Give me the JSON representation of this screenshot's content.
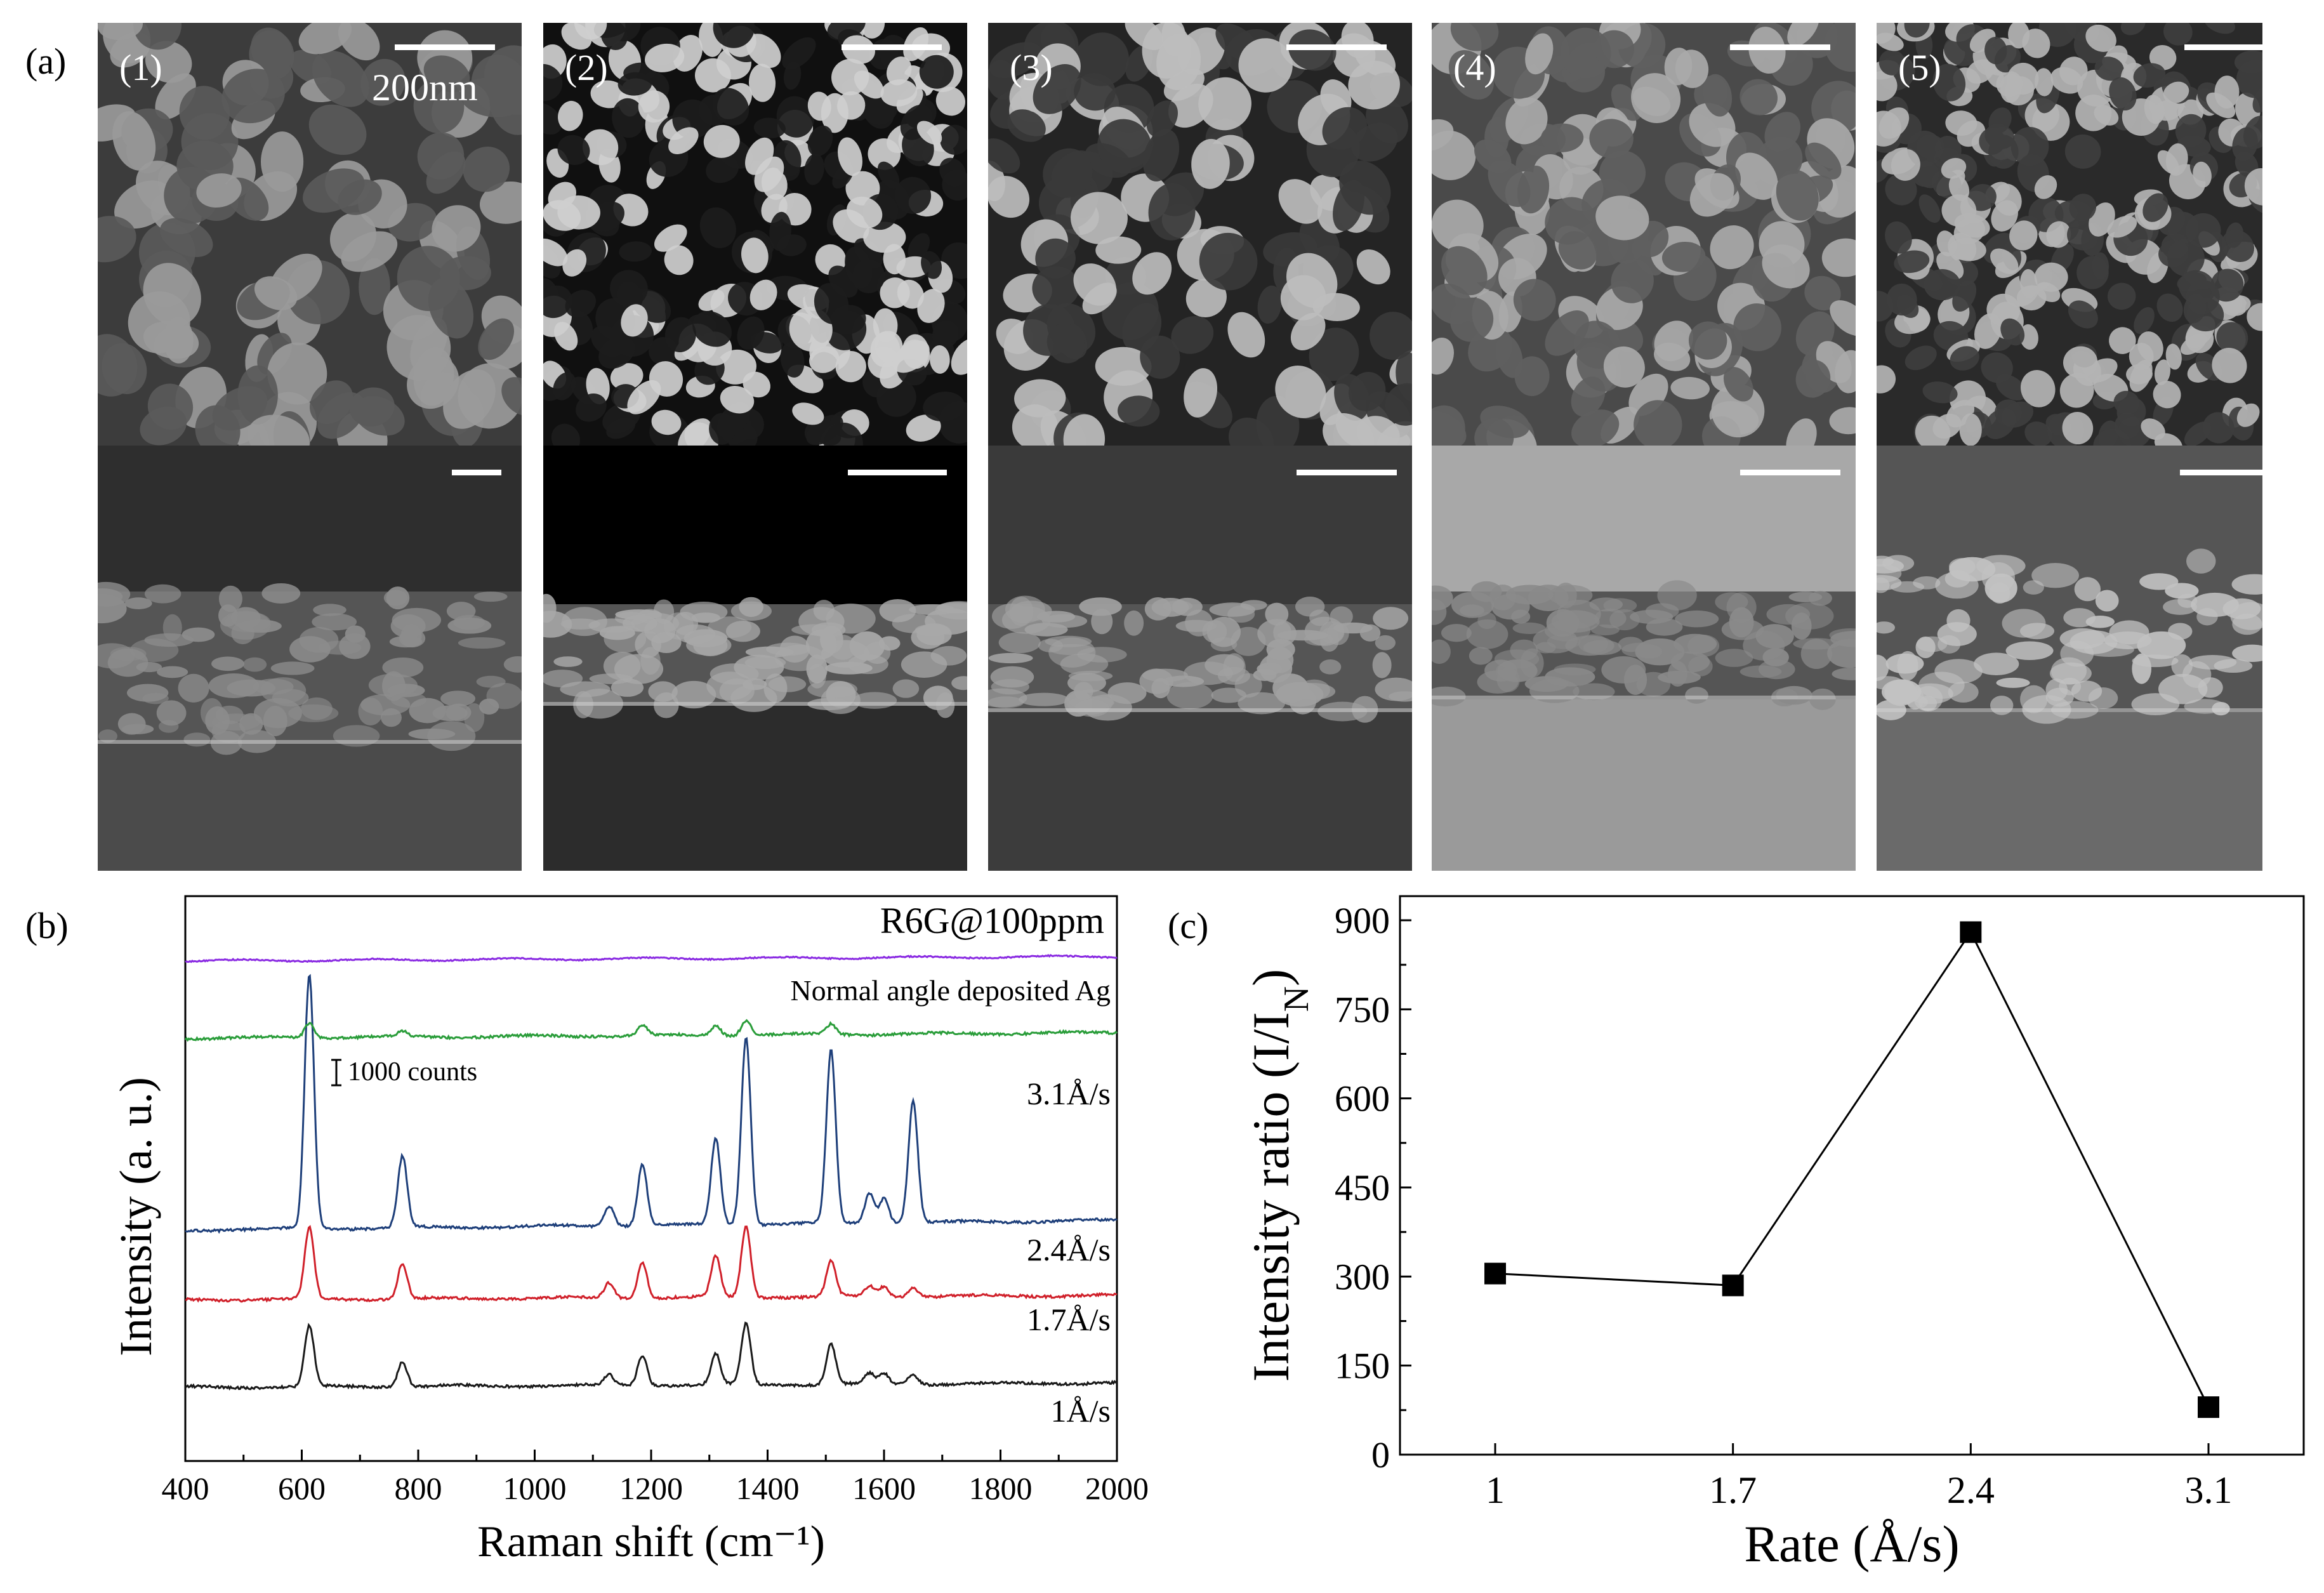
{
  "figure": {
    "panel_labels": [
      "(a)",
      "(b)",
      "(c)"
    ],
    "sem_panels": [
      {
        "label": "(1)",
        "scale_label": "200nm"
      },
      {
        "label": "(2)",
        "scale_label": ""
      },
      {
        "label": "(3)",
        "scale_label": ""
      },
      {
        "label": "(4)",
        "scale_label": ""
      },
      {
        "label": "(5)",
        "scale_label": ""
      }
    ]
  },
  "chart_data": [
    {
      "type": "line",
      "panel": "(b)",
      "title": "",
      "xlabel": "Raman shift (cm⁻¹)",
      "ylabel": "Intensity (a. u.)",
      "xlim": [
        400,
        2000
      ],
      "xticks": [
        "400",
        "600",
        "800",
        "1000",
        "1200",
        "1400",
        "1600",
        "1800",
        "2000"
      ],
      "annotations": {
        "top_right": "R6G@100ppm",
        "normal_angle": "Normal angle  deposited Ag",
        "scale": "1000 counts"
      },
      "peaks_cm": [
        613,
        773,
        1128,
        1185,
        1311,
        1363,
        1509,
        1575,
        1600,
        1650
      ],
      "series": [
        {
          "name": "1Å/s",
          "color": "#1a1a1a",
          "offset": 0,
          "peak_heights": [
            12,
            5,
            2,
            6,
            6,
            12,
            8,
            2,
            2,
            2
          ]
        },
        {
          "name": "1.7Å/s",
          "color": "#d0202a",
          "offset": 1,
          "peak_heights": [
            14,
            7,
            3,
            7,
            8,
            14,
            7,
            2,
            2,
            2
          ]
        },
        {
          "name": "2.4Å/s",
          "color": "#1e3f7a",
          "offset": 2,
          "peak_heights": [
            50,
            14,
            4,
            12,
            17,
            37,
            34,
            6,
            5,
            24
          ]
        },
        {
          "name": "3.1Å/s",
          "color": "#2a9d3a",
          "offset": 3,
          "peak_heights": [
            3,
            1,
            0,
            2,
            2,
            3,
            2,
            0,
            0,
            0
          ]
        },
        {
          "name": "Normal angle  deposited Ag",
          "color": "#8a2be2",
          "offset": 4,
          "peak_heights": [
            0,
            0,
            0,
            0,
            0,
            0,
            0,
            0,
            0,
            0
          ]
        }
      ]
    },
    {
      "type": "line",
      "panel": "(c)",
      "title": "",
      "xlabel": "Rate (Å/s)",
      "ylabel": "Intensity ratio (I/I",
      "ylabel_sub": "N",
      "ylabel_end": ")",
      "categories": [
        "1",
        "1.7",
        "2.4",
        "3.1"
      ],
      "values": [
        305,
        285,
        880,
        80
      ],
      "ylim": [
        0,
        900
      ],
      "yticks": [
        "0",
        "150",
        "300",
        "450",
        "600",
        "750",
        "900"
      ]
    }
  ]
}
